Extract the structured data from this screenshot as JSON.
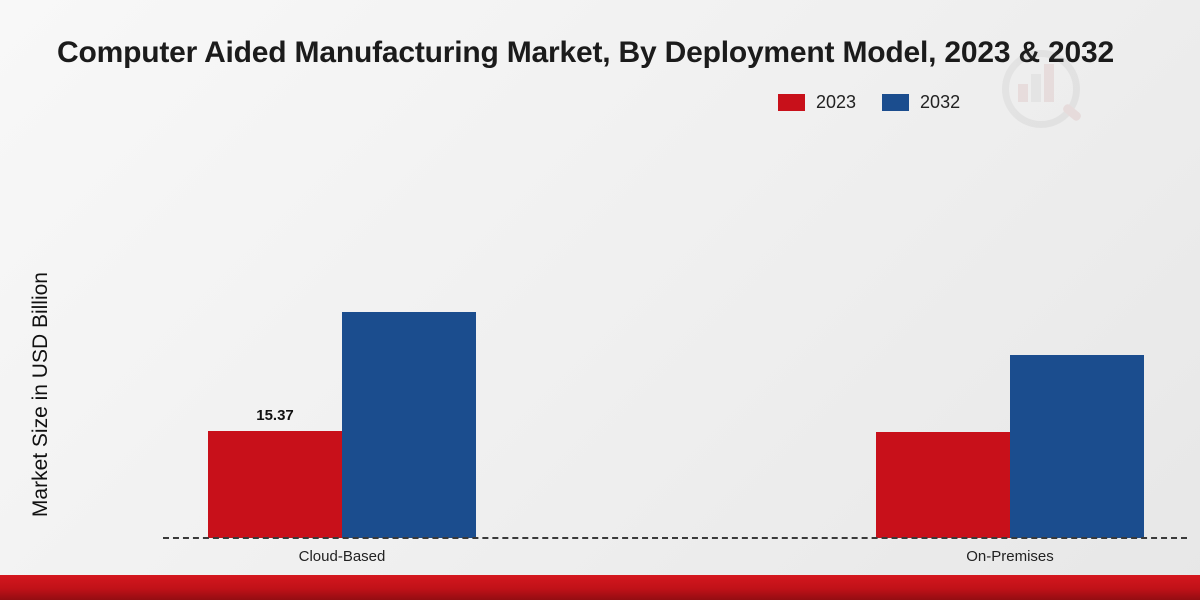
{
  "title": "Computer Aided Manufacturing Market, By Deployment Model, 2023 & 2032",
  "ylabel": "Market Size in USD Billion",
  "legend": [
    {
      "label": "2023",
      "color": "#c8101a"
    },
    {
      "label": "2032",
      "color": "#1b4d8e"
    }
  ],
  "chart_data": {
    "type": "bar",
    "title": "Computer Aided Manufacturing Market, By Deployment Model, 2023 & 2032",
    "categories": [
      "Cloud-Based",
      "On-Premises"
    ],
    "series": [
      {
        "name": "2023",
        "color": "#c8101a",
        "values": [
          15.37,
          15.3
        ],
        "data_labels": [
          "15.37",
          ""
        ]
      },
      {
        "name": "2032",
        "color": "#1b4d8e",
        "values": [
          32.5,
          26.3
        ],
        "data_labels": [
          "",
          ""
        ]
      }
    ],
    "xlabel": "",
    "ylabel": "Market Size in USD Billion",
    "ylim": [
      0,
      40
    ],
    "grid": false,
    "legend_position": "top-right",
    "baseline_style": "dashed",
    "units": "USD Billion"
  }
}
